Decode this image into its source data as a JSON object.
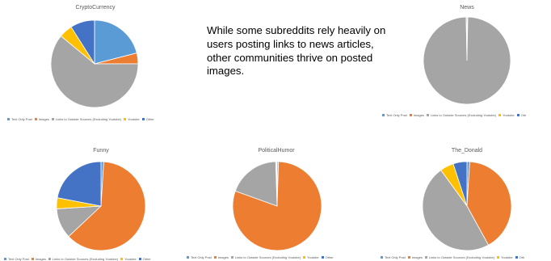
{
  "callout_text": "While some subreddits rely heavily on users posting links to news articles, other communities thrive on posted images.",
  "chart_data": [
    {
      "type": "pie",
      "title": "CryptoCurrency",
      "categories": [
        "Text Only Post",
        "Images",
        "Links to Outside Sources (Excluding Youtube)",
        "Youtube",
        "Other"
      ],
      "values": [
        21,
        4,
        61,
        5,
        9
      ],
      "colors": [
        "#5B9BD5",
        "#ED7D31",
        "#A5A5A5",
        "#FFC000",
        "#4472C4"
      ],
      "legend_position": "bottom",
      "legend_labels": [
        "Text Only Post",
        "Images",
        "Links to Outside Sources (Excluding Youtube)",
        "Youtube",
        "Other"
      ]
    },
    {
      "type": "pie",
      "title": "News",
      "categories": [
        "Text Only Post",
        "Images",
        "Links to Outside Sources (Excluding Youtube)",
        "Youtube",
        "Other"
      ],
      "values": [
        0.3,
        0,
        99.4,
        0,
        0.3
      ],
      "colors": [
        "#5B9BD5",
        "#ED7D31",
        "#A5A5A5",
        "#FFC000",
        "#4472C4"
      ],
      "legend_position": "bottom",
      "legend_labels": [
        "Text Only Post",
        "Images",
        "Links to Outside Sources (Excluding Youtube)",
        "Youtube",
        "Oth"
      ]
    },
    {
      "type": "pie",
      "title": "Funny",
      "categories": [
        "Text Only Post",
        "Images",
        "Links to Outside Sources (Excluding Youtube)",
        "Youtube",
        "Other"
      ],
      "values": [
        1,
        62,
        11,
        4,
        22
      ],
      "colors": [
        "#5B9BD5",
        "#ED7D31",
        "#A5A5A5",
        "#FFC000",
        "#4472C4"
      ],
      "legend_position": "bottom",
      "legend_labels": [
        "Text Only Post",
        "Images",
        "Links to Outside Sources (Excluding Youtube)",
        "Youtube",
        "Other"
      ]
    },
    {
      "type": "pie",
      "title": "PoliticalHumor",
      "categories": [
        "Text Only Post",
        "Images",
        "Links to Outside Sources (Excluding Youtube)",
        "Youtube",
        "Other"
      ],
      "values": [
        0.5,
        80,
        19,
        0.3,
        0.2
      ],
      "colors": [
        "#5B9BD5",
        "#ED7D31",
        "#A5A5A5",
        "#FFC000",
        "#4472C4"
      ],
      "legend_position": "bottom",
      "legend_labels": [
        "Text Only Post",
        "Images",
        "Links to Outside Sources (Excluding Youtube)",
        "Youtube",
        "Other"
      ]
    },
    {
      "type": "pie",
      "title": "The_Donald",
      "categories": [
        "Text Only Post",
        "Images",
        "Links to Outside Sources (Excluding Youtube)",
        "Youtube",
        "Other"
      ],
      "values": [
        1,
        41,
        48,
        5,
        5
      ],
      "colors": [
        "#5B9BD5",
        "#ED7D31",
        "#A5A5A5",
        "#FFC000",
        "#4472C4"
      ],
      "legend_position": "bottom",
      "legend_labels": [
        "Text Only Post",
        "Images",
        "Links to Outside Sources (Excluding Youtube)",
        "Youtube",
        "Oth"
      ]
    }
  ]
}
